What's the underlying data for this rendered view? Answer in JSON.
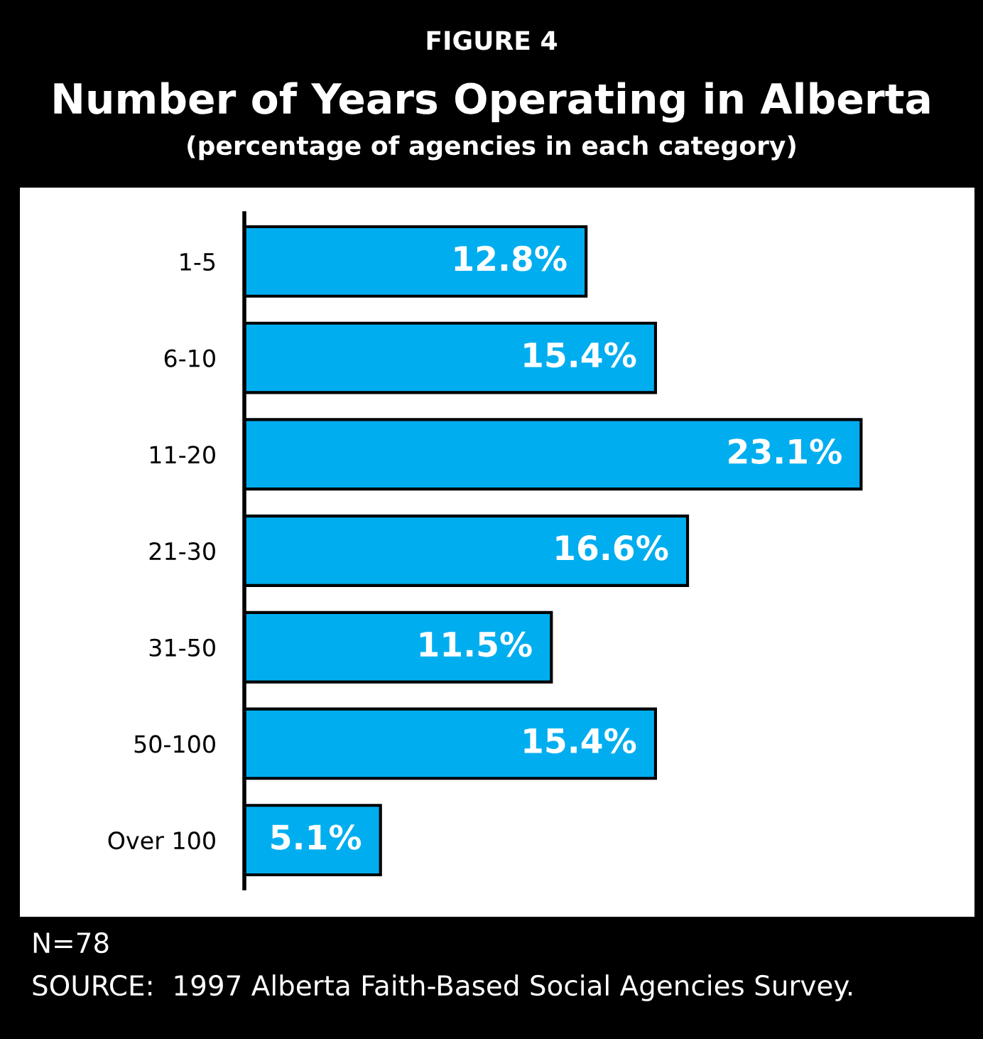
{
  "chart_data": {
    "type": "bar",
    "orientation": "horizontal",
    "title": "Number of Years Operating in Alberta",
    "subtitle": "(percentage of agencies in each category)",
    "categories": [
      "1-5",
      "6-10",
      "11-20",
      "21-30",
      "31-50",
      "50-100",
      "Over 100"
    ],
    "values": [
      12.8,
      15.4,
      23.1,
      16.6,
      11.5,
      15.4,
      5.1
    ],
    "value_labels": [
      "12.8%",
      "15.4%",
      "23.1%",
      "16.6%",
      "11.5%",
      "15.4%",
      "5.1%"
    ],
    "color": "#00aeef",
    "grid": false,
    "legend": false,
    "annotations": [
      "FIGURE 4",
      "N=78",
      "SOURCE:  1997 Alberta Faith-Based Social Agencies Survey."
    ]
  }
}
